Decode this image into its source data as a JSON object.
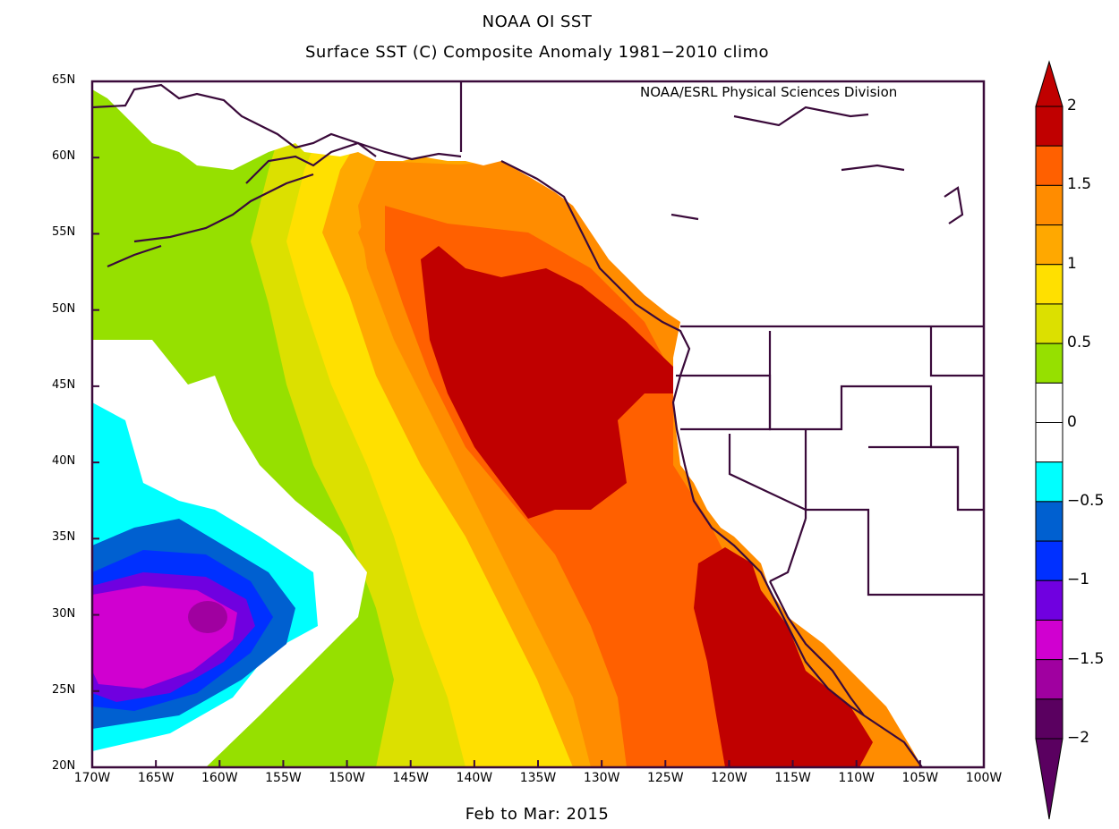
{
  "header": {
    "title": "NOAA OI SST",
    "subtitle": "Surface SST (C) Composite Anomaly 1981−2010 climo"
  },
  "credit": "NOAA/ESRL Physical Sciences Division",
  "caption": "Feb to Mar: 2015",
  "axes": {
    "lon_labels": [
      "170W",
      "165W",
      "160W",
      "155W",
      "150W",
      "145W",
      "140W",
      "135W",
      "130W",
      "125W",
      "120W",
      "115W",
      "110W",
      "105W",
      "100W"
    ],
    "lat_labels": [
      "65N",
      "60N",
      "55N",
      "50N",
      "45N",
      "40N",
      "35N",
      "30N",
      "25N",
      "20N"
    ],
    "lon_range": [
      -170,
      -100
    ],
    "lat_range": [
      20,
      65
    ]
  },
  "colorbar": {
    "labels": [
      "2",
      "1.5",
      "1",
      "0.5",
      "0",
      "−0.5",
      "−1",
      "−1.5",
      "−2"
    ],
    "colors_top_to_bottom": [
      "#c00000",
      "#ff6000",
      "#ff8c00",
      "#ffa800",
      "#ffe000",
      "#dce000",
      "#96e000",
      "#ffffff",
      "#ffffff",
      "#00ffff",
      "#0060d0",
      "#0030ff",
      "#7000e0",
      "#d000d0",
      "#a000a0",
      "#5a0060"
    ]
  },
  "map_colors": {
    "red": "#c00000",
    "orange_dark": "#ff6000",
    "orange": "#ff8c00",
    "orange_light": "#ffa800",
    "yellow": "#ffe000",
    "yellow_green": "#dce000",
    "green": "#96e000",
    "white": "#ffffff",
    "cyan": "#00ffff",
    "blue_mid": "#0060d0",
    "blue": "#0030ff",
    "violet": "#7000e0",
    "magenta": "#d000d0",
    "purple": "#a000a0",
    "coast": "#3a0a3a"
  }
}
